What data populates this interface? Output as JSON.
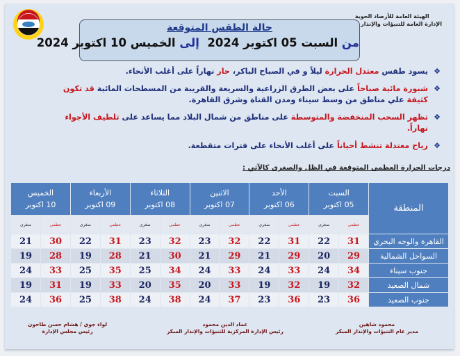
{
  "header": {
    "org_line1": "الهيئة العامة للأرصاد الجوية",
    "org_line2": "الإدارة العامة للتنبؤات والإنذار المبكر",
    "logo_text": "EMA",
    "title": "حالة الطقس المتوقعة",
    "from_label": "من",
    "from_date": "السبت 05 اكتوبر 2024",
    "to_label": "إلى",
    "to_date": "الخميس 10 اكتوبر 2024"
  },
  "bullets": [
    [
      {
        "t": "يسود طقس ",
        "c": "b"
      },
      {
        "t": "معتدل الحرارة",
        "c": "r"
      },
      {
        "t": " ليلاً و في الصباح الباكر، ",
        "c": "b"
      },
      {
        "t": "حار",
        "c": "r"
      },
      {
        "t": " نهاراً على أغلب الأنحاء.",
        "c": "b"
      }
    ],
    [
      {
        "t": "شبورة مائية صباحاً",
        "c": "r"
      },
      {
        "t": " على بعض الطرق الزراعية والسريعة والقريبة من المسطحات المائية ",
        "c": "b"
      },
      {
        "t": "قد تكون كثيفة",
        "c": "r"
      },
      {
        "t": " علي مناطق من وسط سيناء ومدن القناة وشرق القاهرة.",
        "c": "b"
      }
    ],
    [
      {
        "t": "تظهر السحب المنخفضة والمتوسطة",
        "c": "r"
      },
      {
        "t": " على مناطق من شمال البلاد مما يساعد على ",
        "c": "b"
      },
      {
        "t": "تلطيف الأجواء نهاراً.",
        "c": "r"
      }
    ],
    [
      {
        "t": "رياح معتدلة تنشط أحياناً",
        "c": "r"
      },
      {
        "t": " على أغلب الأنحاء على فترات متقطعة.",
        "c": "b"
      }
    ]
  ],
  "colors": {
    "accent_red": "#c8161d",
    "text_blue": "#1f2f7a",
    "table_header": "#4f7fbf"
  },
  "table": {
    "caption": "درجات الحرارة العظمى المتوقعة في الظل والصغرى كالآتي :",
    "region_header": "المنطقة",
    "max_label": "عظمى",
    "min_label": "صغرى",
    "days": [
      {
        "name": "السبت",
        "date": "05 اكتوبر"
      },
      {
        "name": "الأحد",
        "date": "06 اكتوبر"
      },
      {
        "name": "الاثنين",
        "date": "07 اكتوبر"
      },
      {
        "name": "الثلاثاء",
        "date": "08 اكتوبر"
      },
      {
        "name": "الأربعاء",
        "date": "09 اكتوبر"
      },
      {
        "name": "الخميس",
        "date": "10 اكتوبر"
      }
    ],
    "rows": [
      {
        "region": "القاهرة والوجه البحري",
        "temps": [
          [
            31,
            22
          ],
          [
            31,
            22
          ],
          [
            32,
            23
          ],
          [
            32,
            23
          ],
          [
            31,
            22
          ],
          [
            30,
            21
          ]
        ]
      },
      {
        "region": "السواحل الشمالية",
        "temps": [
          [
            29,
            20
          ],
          [
            29,
            21
          ],
          [
            29,
            21
          ],
          [
            30,
            21
          ],
          [
            28,
            19
          ],
          [
            28,
            19
          ]
        ]
      },
      {
        "region": "جنوب سيناء",
        "temps": [
          [
            34,
            24
          ],
          [
            33,
            24
          ],
          [
            33,
            24
          ],
          [
            34,
            25
          ],
          [
            35,
            25
          ],
          [
            33,
            24
          ]
        ]
      },
      {
        "region": "شمال الصعيد",
        "temps": [
          [
            32,
            19
          ],
          [
            32,
            19
          ],
          [
            33,
            20
          ],
          [
            35,
            20
          ],
          [
            33,
            19
          ],
          [
            31,
            19
          ]
        ]
      },
      {
        "region": "جنوب الصعيد",
        "temps": [
          [
            36,
            23
          ],
          [
            36,
            23
          ],
          [
            37,
            24
          ],
          [
            38,
            24
          ],
          [
            38,
            25
          ],
          [
            36,
            24
          ]
        ]
      }
    ]
  },
  "signatures": [
    {
      "name": "محمود شاهين",
      "title": "مدير عام التنبؤات والإنذار المبكر"
    },
    {
      "name": "عماد الدين محمود",
      "title": "رئيس الإدارة المركزية للتنبؤات والإنذار المبكر"
    },
    {
      "name": "لواء جوي / هشام حسن طاحون",
      "title": "رئيس مجلس الإدارة"
    }
  ]
}
